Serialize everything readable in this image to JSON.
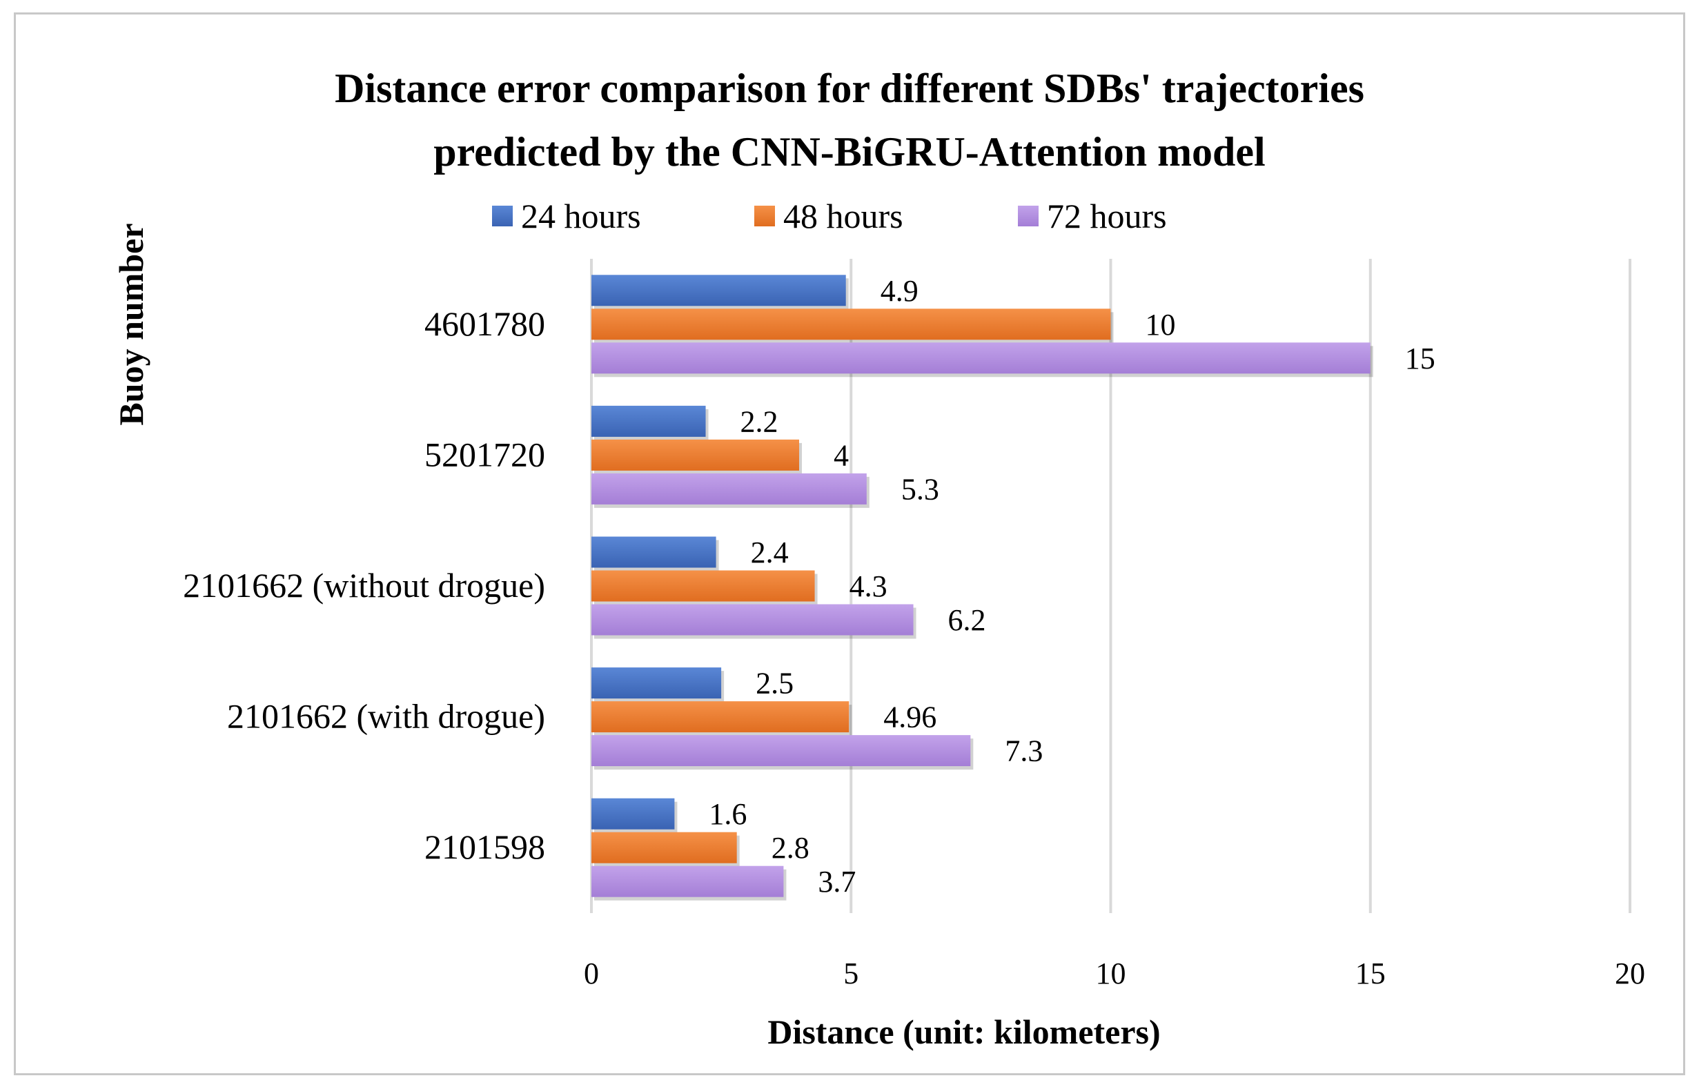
{
  "chart_data": {
    "type": "bar",
    "orientation": "horizontal",
    "title_lines": [
      "Distance error comparison for different SDBs' trajectories",
      "predicted by the CNN-BiGRU-Attention model"
    ],
    "xlabel": "Distance (unit: kilometers)",
    "ylabel": "Buoy number",
    "xlim": [
      0,
      20
    ],
    "xticks": [
      "0",
      "5",
      "10",
      "15",
      "20"
    ],
    "grid": "vertical",
    "legend_position": "top",
    "categories": [
      "4601780",
      "5201720",
      "2101662 (without drogue)",
      "2101662 (with drogue)",
      "2101598"
    ],
    "series": [
      {
        "name": "24 hours",
        "color": "#4472c4",
        "values": [
          4.9,
          2.2,
          2.4,
          2.5,
          1.6
        ],
        "labels": [
          "4.9",
          "2.2",
          "2.4",
          "2.5",
          "1.6"
        ]
      },
      {
        "name": "48 hours",
        "color": "#ed7d31",
        "values": [
          10,
          4,
          4.3,
          4.96,
          2.8
        ],
        "labels": [
          "10",
          "4",
          "4.3",
          "4.96",
          "2.8"
        ]
      },
      {
        "name": "72 hours",
        "color": "#b18ee0",
        "values": [
          15,
          5.3,
          6.2,
          7.3,
          3.7
        ],
        "labels": [
          "15",
          "5.3",
          "6.2",
          "7.3",
          "3.7"
        ]
      }
    ]
  }
}
